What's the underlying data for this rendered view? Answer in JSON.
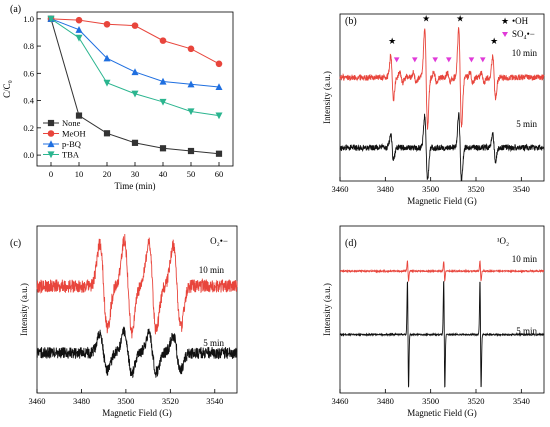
{
  "chart_data": [
    {
      "type": "line",
      "panel_label": "(a)",
      "xlabel": "Time (min)",
      "ylabel": "C/C₀",
      "xlim": [
        -5,
        65
      ],
      "ylim": [
        -0.08,
        1.05
      ],
      "xticks": [
        0,
        10,
        20,
        30,
        40,
        50,
        60
      ],
      "yticks": [
        0.0,
        0.2,
        0.4,
        0.6,
        0.8,
        1.0
      ],
      "ytick_labels": [
        "0.0",
        "0.2",
        "0.4",
        "0.6",
        "0.8",
        "1.0"
      ],
      "legend_position": "bottom-left",
      "x": [
        0,
        10,
        20,
        30,
        40,
        50,
        60
      ],
      "series": [
        {
          "name": "None",
          "color": "#333333",
          "marker": "square",
          "values": [
            1.0,
            0.29,
            0.16,
            0.09,
            0.05,
            0.03,
            0.01
          ]
        },
        {
          "name": "MeOH",
          "color": "#e8453c",
          "marker": "circle",
          "values": [
            1.0,
            0.99,
            0.96,
            0.95,
            0.84,
            0.78,
            0.67
          ]
        },
        {
          "name": "p-BQ",
          "color": "#1f6fe0",
          "marker": "triangle-up",
          "values": [
            1.0,
            0.92,
            0.71,
            0.61,
            0.54,
            0.52,
            0.5
          ]
        },
        {
          "name": "TBA",
          "color": "#2bb58f",
          "marker": "triangle-down",
          "values": [
            1.0,
            0.86,
            0.53,
            0.45,
            0.39,
            0.32,
            0.29
          ]
        }
      ]
    },
    {
      "type": "line",
      "panel_label": "(b)",
      "xlabel": "Magnetic Field (G)",
      "ylabel": "Intensity (a.u.)",
      "xlim": [
        3460,
        3550
      ],
      "xticks": [
        3460,
        3480,
        3500,
        3520,
        3540
      ],
      "annotations": {
        "oh": "•OH",
        "so4": "SO₄•−"
      },
      "oh_markers_x": [
        3483,
        3498,
        3513,
        3528
      ],
      "so4_markers_x": [
        3485,
        3493,
        3502,
        3508,
        3518,
        3523
      ],
      "series": [
        {
          "name": "10 min",
          "color": "#e8453c",
          "offset": 0.62,
          "peaks": [
            {
              "x": 3483,
              "amp": 0.13
            },
            {
              "x": 3498,
              "amp": 0.3
            },
            {
              "x": 3513,
              "amp": 0.3
            },
            {
              "x": 3528,
              "amp": 0.13
            },
            {
              "x": 3487,
              "amp": 0.03
            },
            {
              "x": 3493,
              "amp": 0.03
            },
            {
              "x": 3502,
              "amp": 0.03
            },
            {
              "x": 3508,
              "amp": 0.03
            },
            {
              "x": 3518,
              "amp": 0.03
            },
            {
              "x": 3523,
              "amp": 0.03
            }
          ],
          "noise": 0.018
        },
        {
          "name": "5 min",
          "color": "#111111",
          "offset": 0.2,
          "peaks": [
            {
              "x": 3483,
              "amp": 0.08
            },
            {
              "x": 3498,
              "amp": 0.2
            },
            {
              "x": 3513,
              "amp": 0.2
            },
            {
              "x": 3528,
              "amp": 0.08
            }
          ],
          "noise": 0.018
        }
      ]
    },
    {
      "type": "line",
      "panel_label": "(c)",
      "xlabel": "Magnetic Field (G)",
      "ylabel": "Intensity (a.u.)",
      "xlim": [
        3460,
        3550
      ],
      "xticks": [
        3460,
        3480,
        3500,
        3520,
        3540
      ],
      "annotations": {
        "radical": "O₂•−"
      },
      "series": [
        {
          "name": "10 min",
          "color": "#e8453c",
          "offset": 0.64,
          "peaks": [
            {
              "x": 3490,
              "amp": 0.26
            },
            {
              "x": 3501,
              "amp": 0.28
            },
            {
              "x": 3512,
              "amp": 0.27
            },
            {
              "x": 3523,
              "amp": 0.25
            }
          ],
          "noise": 0.04
        },
        {
          "name": "5 min",
          "color": "#111111",
          "offset": 0.24,
          "peaks": [
            {
              "x": 3490,
              "amp": 0.11
            },
            {
              "x": 3501,
              "amp": 0.13
            },
            {
              "x": 3512,
              "amp": 0.12
            },
            {
              "x": 3523,
              "amp": 0.1
            }
          ],
          "noise": 0.035
        }
      ]
    },
    {
      "type": "line",
      "panel_label": "(d)",
      "xlabel": "Magnetic Field (G)",
      "ylabel": "Intensity (a.u.)",
      "xlim": [
        3460,
        3550
      ],
      "xticks": [
        3460,
        3480,
        3500,
        3520,
        3540
      ],
      "annotations": {
        "radical": "¹O₂"
      },
      "series": [
        {
          "name": "10 min",
          "color": "#e8453c",
          "offset": 0.73,
          "peaks": [
            {
              "x": 3490,
              "amp": 0.06
            },
            {
              "x": 3506,
              "amp": 0.06
            },
            {
              "x": 3522,
              "amp": 0.06
            }
          ],
          "noise": 0.004
        },
        {
          "name": "5 min",
          "color": "#111111",
          "offset": 0.35,
          "peaks": [
            {
              "x": 3490,
              "amp": 0.33
            },
            {
              "x": 3506,
              "amp": 0.33
            },
            {
              "x": 3522,
              "amp": 0.33
            }
          ],
          "noise": 0.004
        }
      ]
    }
  ]
}
